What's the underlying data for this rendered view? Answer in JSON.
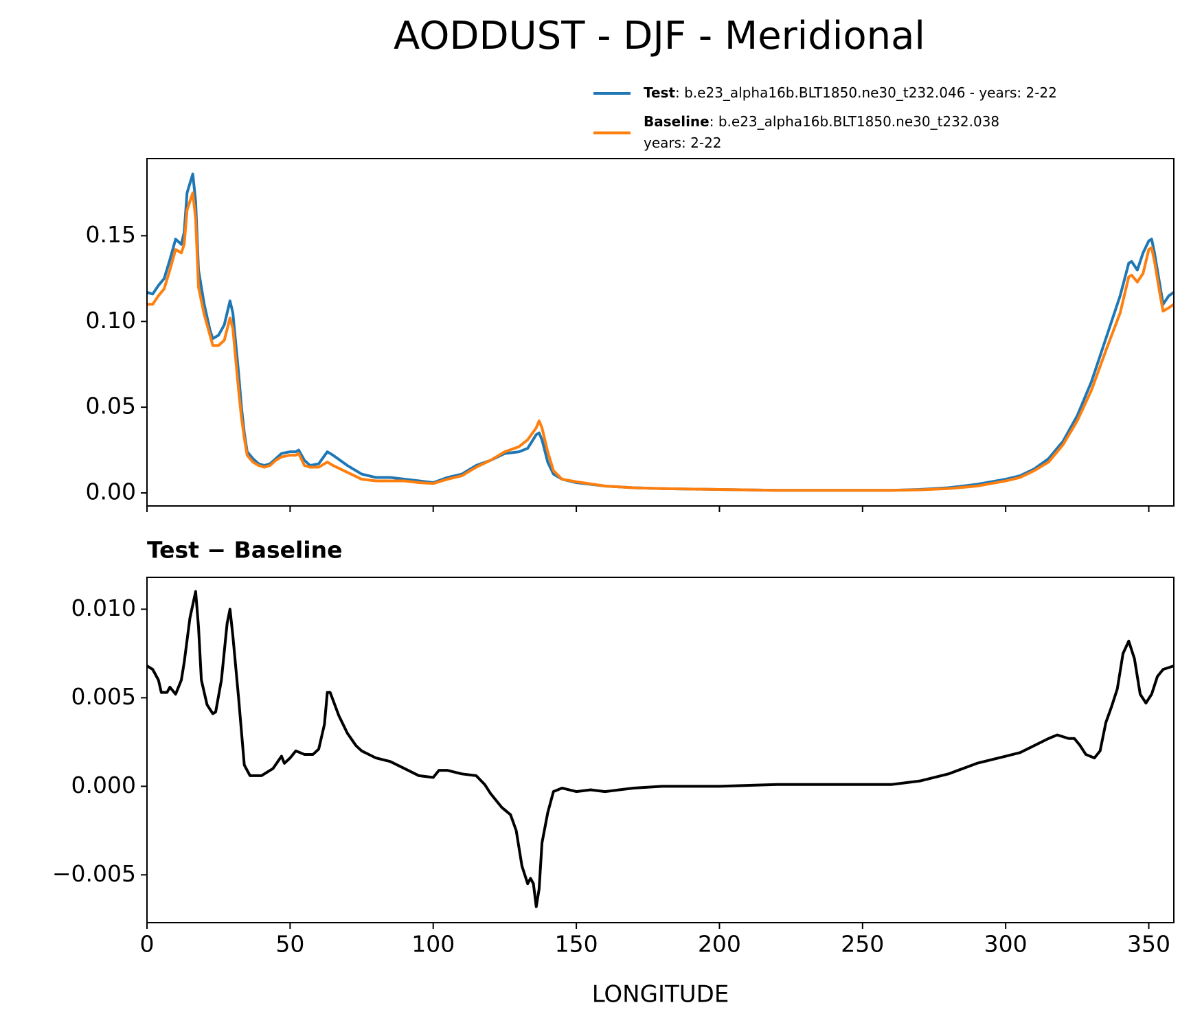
{
  "chart_data": [
    {
      "type": "line",
      "title": "AODDUST - DJF - Meridional",
      "x": [
        0,
        2,
        4,
        6,
        8,
        10,
        12,
        13,
        14,
        16,
        17,
        18,
        20,
        22,
        23,
        25,
        27,
        29,
        30,
        32,
        33,
        34,
        35,
        37,
        39,
        41,
        43,
        45,
        47,
        50,
        52,
        53,
        55,
        57,
        60,
        63,
        65,
        70,
        75,
        80,
        85,
        90,
        95,
        100,
        105,
        110,
        115,
        120,
        125,
        130,
        133,
        136,
        137,
        138,
        140,
        142,
        145,
        150,
        160,
        170,
        180,
        200,
        220,
        240,
        260,
        270,
        280,
        290,
        300,
        305,
        310,
        315,
        320,
        325,
        330,
        335,
        340,
        343,
        344,
        346,
        348,
        350,
        351,
        352,
        354,
        355,
        357,
        358.75
      ],
      "series": [
        {
          "name": "Test",
          "legend_text": [
            ": b.e23_alpha16b.BLT1850.ne30_t232.046 - years: 2-22"
          ],
          "color": "#1f77b4",
          "values": [
            0.117,
            0.116,
            0.121,
            0.125,
            0.136,
            0.148,
            0.145,
            0.152,
            0.175,
            0.186,
            0.17,
            0.13,
            0.11,
            0.095,
            0.09,
            0.092,
            0.098,
            0.112,
            0.105,
            0.07,
            0.05,
            0.035,
            0.024,
            0.02,
            0.017,
            0.016,
            0.017,
            0.02,
            0.023,
            0.024,
            0.024,
            0.025,
            0.019,
            0.016,
            0.017,
            0.024,
            0.022,
            0.016,
            0.011,
            0.009,
            0.009,
            0.008,
            0.007,
            0.006,
            0.009,
            0.011,
            0.016,
            0.019,
            0.023,
            0.024,
            0.026,
            0.034,
            0.035,
            0.031,
            0.018,
            0.011,
            0.008,
            0.006,
            0.004,
            0.003,
            0.0025,
            0.002,
            0.0015,
            0.0015,
            0.0015,
            0.002,
            0.003,
            0.005,
            0.008,
            0.01,
            0.014,
            0.02,
            0.03,
            0.045,
            0.065,
            0.09,
            0.115,
            0.134,
            0.135,
            0.13,
            0.14,
            0.147,
            0.148,
            0.14,
            0.12,
            0.11,
            0.115,
            0.117
          ]
        },
        {
          "name": "Baseline",
          "legend_text": [
            ": b.e23_alpha16b.BLT1850.ne30_t232.038",
            "years: 2-22"
          ],
          "color": "#ff7f0e",
          "values": [
            0.11,
            0.11,
            0.115,
            0.119,
            0.13,
            0.142,
            0.14,
            0.145,
            0.165,
            0.175,
            0.16,
            0.12,
            0.104,
            0.092,
            0.086,
            0.086,
            0.089,
            0.102,
            0.096,
            0.06,
            0.044,
            0.032,
            0.022,
            0.018,
            0.016,
            0.015,
            0.016,
            0.019,
            0.021,
            0.022,
            0.022,
            0.023,
            0.016,
            0.015,
            0.015,
            0.018,
            0.016,
            0.012,
            0.008,
            0.007,
            0.007,
            0.007,
            0.006,
            0.0055,
            0.008,
            0.01,
            0.015,
            0.019,
            0.024,
            0.027,
            0.031,
            0.038,
            0.042,
            0.038,
            0.024,
            0.013,
            0.008,
            0.0065,
            0.004,
            0.003,
            0.0025,
            0.002,
            0.0015,
            0.0015,
            0.0015,
            0.0018,
            0.0025,
            0.004,
            0.007,
            0.009,
            0.013,
            0.018,
            0.028,
            0.042,
            0.06,
            0.083,
            0.105,
            0.126,
            0.127,
            0.123,
            0.128,
            0.142,
            0.143,
            0.135,
            0.115,
            0.106,
            0.108,
            0.11
          ]
        }
      ],
      "xlim": [
        0,
        358.75
      ],
      "xticks": [
        0,
        50,
        100,
        150,
        200,
        250,
        300,
        350
      ],
      "ylim": [
        -0.0076,
        0.195
      ],
      "yticks": [
        {
          "value": 0,
          "label": "0.00"
        },
        0.05,
        {
          "value": 0.1,
          "label": "0.10"
        },
        0.15
      ]
    },
    {
      "type": "line",
      "title": "Test − Baseline",
      "x_label": "LONGITUDE",
      "color": "#000000",
      "x": [
        0,
        2,
        4,
        5,
        7,
        8,
        10,
        12,
        13,
        15,
        17,
        18,
        19,
        21,
        23,
        24,
        26,
        28,
        29,
        30,
        32,
        34,
        36,
        40,
        44,
        47,
        48,
        50,
        52,
        55,
        58,
        60,
        62,
        63,
        64,
        67,
        70,
        73,
        75,
        80,
        85,
        90,
        95,
        100,
        102,
        105,
        110,
        115,
        118,
        120,
        124,
        127,
        129,
        131,
        133,
        134,
        135,
        136,
        137,
        138,
        140,
        142,
        145,
        150,
        155,
        160,
        165,
        170,
        180,
        200,
        220,
        240,
        260,
        270,
        280,
        285,
        290,
        295,
        300,
        305,
        310,
        315,
        318,
        320,
        322,
        324,
        326,
        328,
        331,
        333,
        335,
        337,
        339,
        341,
        343,
        345,
        347,
        349,
        351,
        353,
        355,
        358.75
      ],
      "values": [
        0.0068,
        0.0066,
        0.006,
        0.0053,
        0.0053,
        0.0056,
        0.0052,
        0.006,
        0.007,
        0.0095,
        0.011,
        0.009,
        0.006,
        0.0046,
        0.0041,
        0.0042,
        0.006,
        0.0092,
        0.01,
        0.0085,
        0.005,
        0.0012,
        0.0006,
        0.0006,
        0.001,
        0.0017,
        0.0013,
        0.0016,
        0.002,
        0.0018,
        0.0018,
        0.0021,
        0.0035,
        0.0053,
        0.0053,
        0.004,
        0.003,
        0.0023,
        0.002,
        0.0016,
        0.0014,
        0.001,
        0.0006,
        0.0005,
        0.0009,
        0.0009,
        0.0007,
        0.0006,
        0.0001,
        -0.0004,
        -0.0012,
        -0.0016,
        -0.0025,
        -0.0045,
        -0.0055,
        -0.0052,
        -0.0055,
        -0.0068,
        -0.0058,
        -0.0032,
        -0.0015,
        -0.0003,
        -0.0001,
        -0.0003,
        -0.0002,
        -0.0003,
        -0.0002,
        -0.0001,
        0,
        0,
        0.0001,
        0.0001,
        0.0001,
        0.0003,
        0.0007,
        0.001,
        0.0013,
        0.0015,
        0.0017,
        0.0019,
        0.0023,
        0.0027,
        0.0029,
        0.0028,
        0.0027,
        0.0027,
        0.0023,
        0.0018,
        0.0016,
        0.002,
        0.0036,
        0.0045,
        0.0055,
        0.0075,
        0.0082,
        0.0072,
        0.0052,
        0.0047,
        0.0052,
        0.0062,
        0.0066,
        0.0068
      ],
      "xlim": [
        0,
        358.75
      ],
      "xticks": [
        0,
        50,
        100,
        150,
        200,
        250,
        300,
        350
      ],
      "ylim": [
        -0.0077,
        0.0118
      ],
      "yticks": [
        {
          "value": -0.005,
          "label": "−0.005"
        },
        {
          "value": 0,
          "label": "0.000"
        },
        0.005,
        {
          "value": 0.01,
          "label": "0.010"
        }
      ]
    }
  ]
}
